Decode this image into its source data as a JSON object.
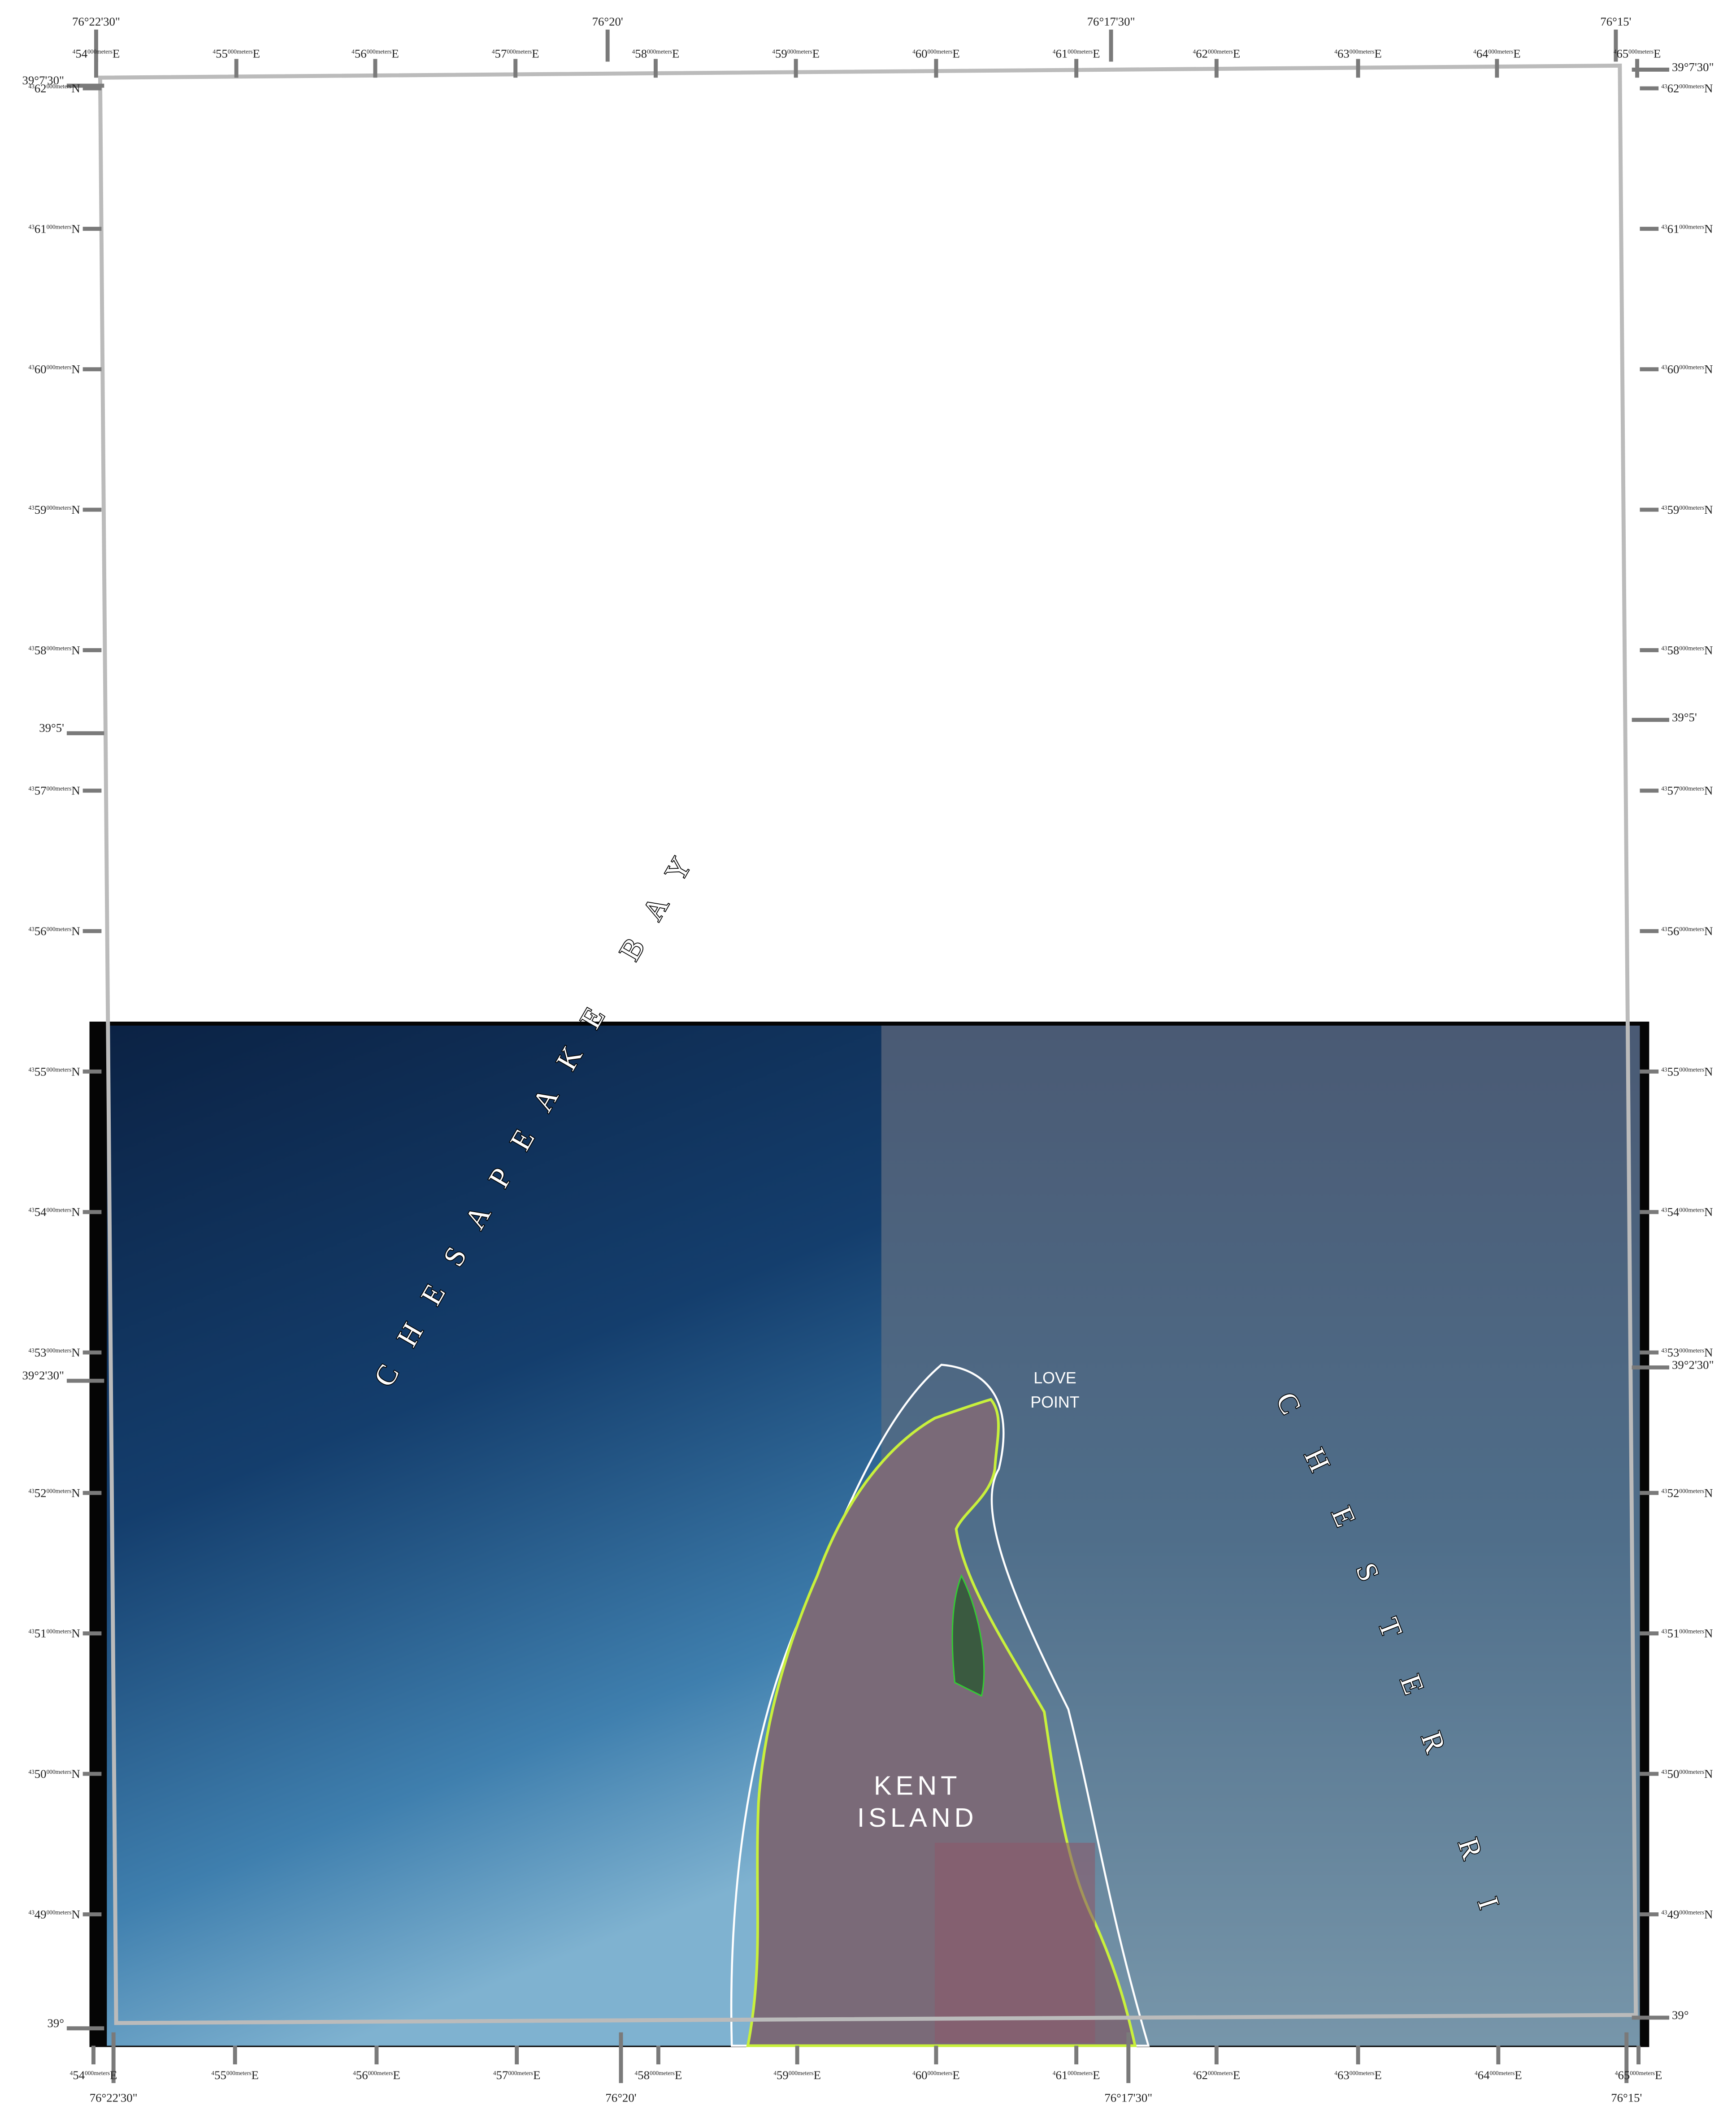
{
  "frame": {
    "top_longitudes": [
      "76°22'30\"",
      "76°20'",
      "76°17'30\"",
      "76°15'"
    ],
    "bottom_longitudes": [
      "76°22'30\"",
      "76°20'",
      "76°17'30\"",
      "76°15'"
    ],
    "left_latitudes": [
      "39°7'30\"",
      "39°5'",
      "39°2'30\"",
      "39°"
    ],
    "right_latitudes": [
      "39°7'30\"",
      "39°5'",
      "39°2'30\"",
      "39°"
    ]
  },
  "grid": {
    "e_lead": "4",
    "n_lead": "43",
    "tail": "000meters",
    "e_hemi": "E",
    "n_hemi": "N",
    "eastings": [
      "54",
      "55",
      "56",
      "57",
      "58",
      "59",
      "60",
      "61",
      "62",
      "63",
      "64",
      "65"
    ],
    "northings": [
      "62",
      "61",
      "60",
      "59",
      "58",
      "57",
      "56",
      "55",
      "54",
      "53",
      "52",
      "51",
      "50",
      "49"
    ]
  },
  "places": {
    "bay": "CHESAPEAKE BAY",
    "point": [
      "LOVE",
      "POINT"
    ],
    "island": [
      "KENT",
      "ISLAND"
    ],
    "river": "CHESTER RIVER"
  }
}
